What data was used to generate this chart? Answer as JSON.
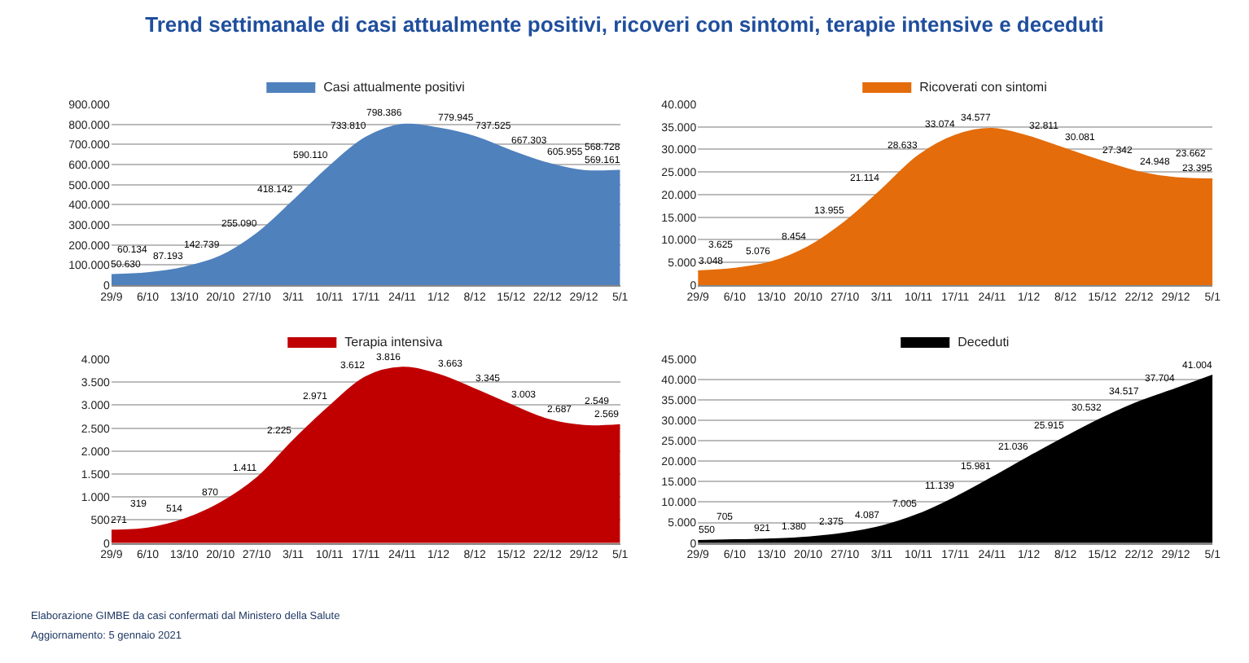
{
  "chart_data": [
    {
      "type": "area",
      "title": "Trend settimanale di casi attualmente positivi, ricoveri con sintomi, terapie intensive e deceduti",
      "annotations": [
        "Elaborazione GIMBE da casi confermati dal Ministero della Salute",
        "Aggiornamento: 5 gennaio 2021"
      ],
      "categories": [
        "29/9",
        "6/10",
        "13/10",
        "20/10",
        "27/10",
        "3/11",
        "10/11",
        "17/11",
        "24/11",
        "1/12",
        "8/12",
        "15/12",
        "22/12",
        "29/12",
        "5/1"
      ],
      "series": [
        {
          "name": "Casi attualmente positivi",
          "color": "#4f81bd",
          "values": [
            50630,
            60134,
            87193,
            142739,
            255090,
            418142,
            590110,
            733810,
            798386,
            779945,
            737525,
            667303,
            605955,
            568728,
            569161
          ],
          "value_labels": [
            "50.630",
            "60.134",
            "87.193",
            "142.739",
            "255.090",
            "418.142",
            "590.110",
            "733.810",
            "798.386",
            "779.945",
            "737.525",
            "667.303",
            "605.955",
            "568.728",
            "569.161"
          ]
        }
      ],
      "ylim": [
        0,
        900000
      ],
      "yticks": [
        0,
        {
          "value": 100000,
          "label": "100.000"
        },
        {
          "value": 200000,
          "label": "200.000"
        },
        {
          "value": 300000,
          "label": "300.000"
        },
        {
          "value": 400000,
          "label": "400.000"
        },
        {
          "value": 500000,
          "label": "500.000"
        },
        {
          "value": 600000,
          "label": "600.000"
        },
        {
          "value": 700000,
          "label": "700.000"
        },
        {
          "value": 800000,
          "label": "800.000"
        },
        {
          "value": 900000,
          "label": "900.000"
        }
      ],
      "grid": "y",
      "legend": "top"
    },
    {
      "type": "area",
      "categories": [
        "29/9",
        "6/10",
        "13/10",
        "20/10",
        "27/10",
        "3/11",
        "10/11",
        "17/11",
        "24/11",
        "1/12",
        "8/12",
        "15/12",
        "22/12",
        "29/12",
        "5/1"
      ],
      "series": [
        {
          "name": "Ricoverati con sintomi",
          "color": "#e46c0a",
          "values": [
            3048,
            3625,
            5076,
            8454,
            13955,
            21114,
            28633,
            33074,
            34577,
            32811,
            30081,
            27342,
            24948,
            23662,
            23395
          ],
          "value_labels": [
            "3.048",
            "3.625",
            "5.076",
            "8.454",
            "13.955",
            "21.114",
            "28.633",
            "33.074",
            "34.577",
            "32.811",
            "30.081",
            "27.342",
            "24.948",
            "23.662",
            "23.395"
          ]
        }
      ],
      "ylim": [
        0,
        40000
      ],
      "yticks": [
        0,
        {
          "value": 5000,
          "label": "5.000"
        },
        {
          "value": 10000,
          "label": "10.000"
        },
        {
          "value": 15000,
          "label": "15.000"
        },
        {
          "value": 20000,
          "label": "20.000"
        },
        {
          "value": 25000,
          "label": "25.000"
        },
        {
          "value": 30000,
          "label": "30.000"
        },
        {
          "value": 35000,
          "label": "35.000"
        },
        {
          "value": 40000,
          "label": "40.000"
        }
      ],
      "grid": "y",
      "legend": "top"
    },
    {
      "type": "area",
      "categories": [
        "29/9",
        "6/10",
        "13/10",
        "20/10",
        "27/10",
        "3/11",
        "10/11",
        "17/11",
        "24/11",
        "1/12",
        "8/12",
        "15/12",
        "22/12",
        "29/12",
        "5/1"
      ],
      "series": [
        {
          "name": "Terapia intensiva",
          "color": "#c00000",
          "values": [
            271,
            319,
            514,
            870,
            1411,
            2225,
            2971,
            3612,
            3816,
            3663,
            3345,
            3003,
            2687,
            2549,
            2569
          ],
          "value_labels": [
            "271",
            "319",
            "514",
            "870",
            "1.411",
            "2.225",
            "2.971",
            "3.612",
            "3.816",
            "3.663",
            "3.345",
            "3.003",
            "2.687",
            "2.549",
            "2.569"
          ]
        }
      ],
      "ylim": [
        0,
        4000
      ],
      "yticks": [
        0,
        500,
        {
          "value": 1000,
          "label": "1.000"
        },
        {
          "value": 1500,
          "label": "1.500"
        },
        {
          "value": 2000,
          "label": "2.000"
        },
        {
          "value": 2500,
          "label": "2.500"
        },
        {
          "value": 3000,
          "label": "3.000"
        },
        {
          "value": 3500,
          "label": "3.500"
        },
        {
          "value": 4000,
          "label": "4.000"
        }
      ],
      "grid": "y",
      "legend": "top"
    },
    {
      "type": "area",
      "categories": [
        "29/9",
        "6/10",
        "13/10",
        "20/10",
        "27/10",
        "3/11",
        "10/11",
        "17/11",
        "24/11",
        "1/12",
        "8/12",
        "15/12",
        "22/12",
        "29/12",
        "5/1"
      ],
      "series": [
        {
          "name": "Deceduti",
          "color": "#000000",
          "values": [
            550,
            705,
            921,
            1380,
            2375,
            4087,
            7005,
            11139,
            15981,
            21036,
            25915,
            30532,
            34517,
            37704,
            41004
          ],
          "value_labels": [
            "550",
            "705",
            "921",
            "1.380",
            "2.375",
            "4.087",
            "7.005",
            "11.139",
            "15.981",
            "21.036",
            "25.915",
            "30.532",
            "34.517",
            "37.704",
            "41.004"
          ]
        }
      ],
      "ylim": [
        0,
        45000
      ],
      "yticks": [
        0,
        {
          "value": 5000,
          "label": "5.000"
        },
        {
          "value": 10000,
          "label": "10.000"
        },
        {
          "value": 15000,
          "label": "15.000"
        },
        {
          "value": 20000,
          "label": "20.000"
        },
        {
          "value": 25000,
          "label": "25.000"
        },
        {
          "value": 30000,
          "label": "30.000"
        },
        {
          "value": 35000,
          "label": "35.000"
        },
        {
          "value": 40000,
          "label": "40.000"
        },
        {
          "value": 45000,
          "label": "45.000"
        }
      ],
      "grid": "y",
      "legend": "top"
    }
  ]
}
